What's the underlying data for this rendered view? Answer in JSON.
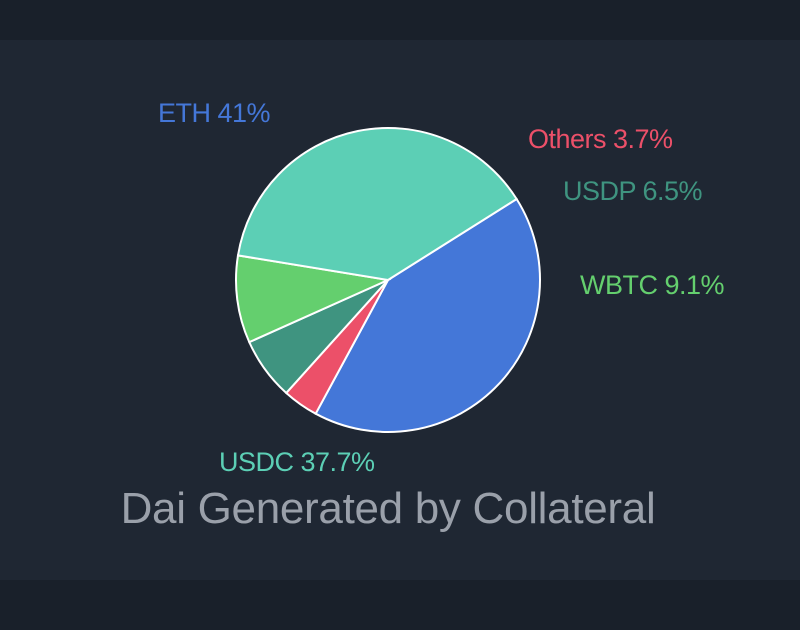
{
  "colors": {
    "background": "#1f2733",
    "band": "#19202a",
    "title": "#9aa0aa"
  },
  "chart_data": {
    "type": "pie",
    "title": "Dai Generated by Collateral",
    "slices": [
      {
        "label": "ETH 41%",
        "name": "ETH",
        "value": 41.0,
        "color": "#4477d8"
      },
      {
        "label": "Others 3.7%",
        "name": "Others",
        "value": 3.7,
        "color": "#ec5069"
      },
      {
        "label": "USDP 6.5%",
        "name": "USDP",
        "value": 6.5,
        "color": "#3f9480"
      },
      {
        "label": "WBTC 9.1%",
        "name": "WBTC",
        "value": 9.1,
        "color": "#64cf6e"
      },
      {
        "label": "USDC 37.7%",
        "name": "USDC",
        "value": 37.7,
        "color": "#5ccfb5"
      }
    ]
  }
}
